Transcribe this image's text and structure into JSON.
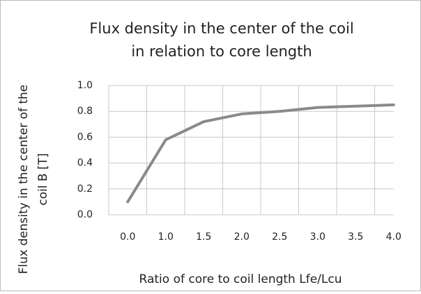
{
  "chart_data": {
    "type": "line",
    "title": [
      "Flux density in the center of the coil",
      "in relation to core length"
    ],
    "y_label": [
      "Flux density in the center of the",
      "coil   B [T]"
    ],
    "x_label": "Ratio of core to coil length    Lfe/Lcu",
    "categories": [
      "0.0",
      "1.0",
      "1.5",
      "2.0",
      "2.5",
      "3.0",
      "3.5",
      "4.0"
    ],
    "values": [
      0.1,
      0.58,
      0.72,
      0.78,
      0.8,
      0.83,
      0.84,
      0.85
    ],
    "color": "#8a8a8a",
    "ylim": [
      0,
      1
    ],
    "yticks": [
      {
        "value": 0,
        "label": "0.0"
      },
      0.2,
      0.4,
      0.6,
      0.8,
      {
        "value": 1,
        "label": "1.0"
      }
    ],
    "grid": true
  }
}
